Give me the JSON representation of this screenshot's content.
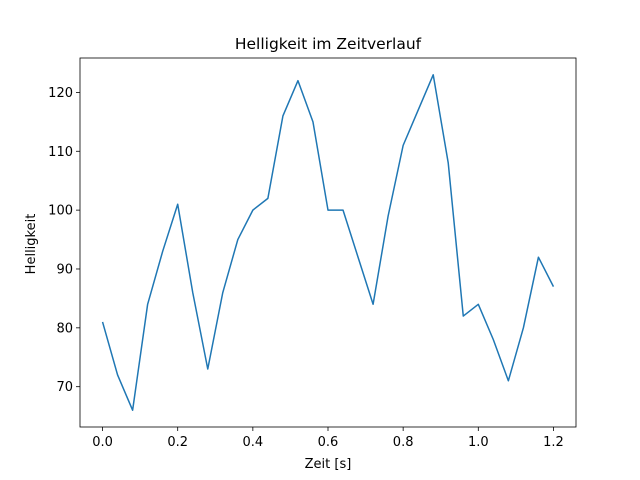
{
  "chart_data": {
    "type": "line",
    "title": "Helligkeit im Zeitverlauf",
    "xlabel": "Zeit [s]",
    "ylabel": "Helligkeit",
    "xlim": [
      -0.06,
      1.26
    ],
    "ylim": [
      63.15,
      125.85
    ],
    "xticks": [
      0.0,
      0.2,
      0.4,
      0.6,
      0.8,
      1.0,
      1.2
    ],
    "xtick_labels": [
      "0.0",
      "0.2",
      "0.4",
      "0.6",
      "0.8",
      "1.0",
      "1.2"
    ],
    "yticks": [
      70,
      80,
      90,
      100,
      110,
      120
    ],
    "ytick_labels": [
      "70",
      "80",
      "90",
      "100",
      "110",
      "120"
    ],
    "grid": false,
    "legend": "none",
    "series": [
      {
        "color": "#1f77b4",
        "x": [
          0.0,
          0.04,
          0.08,
          0.12,
          0.16,
          0.2,
          0.24,
          0.28,
          0.32,
          0.36,
          0.4,
          0.44,
          0.48,
          0.52,
          0.56,
          0.6,
          0.64,
          0.68,
          0.72,
          0.76,
          0.8,
          0.84,
          0.88,
          0.92,
          0.96,
          1.0,
          1.04,
          1.08,
          1.12,
          1.16,
          1.2
        ],
        "y": [
          81,
          72,
          66,
          84,
          93,
          101,
          86,
          73,
          86,
          95,
          100,
          102,
          116,
          122,
          115,
          100,
          100,
          92,
          84,
          99,
          111,
          117,
          123,
          108,
          82,
          84,
          78,
          71,
          80,
          92,
          87
        ]
      }
    ]
  }
}
